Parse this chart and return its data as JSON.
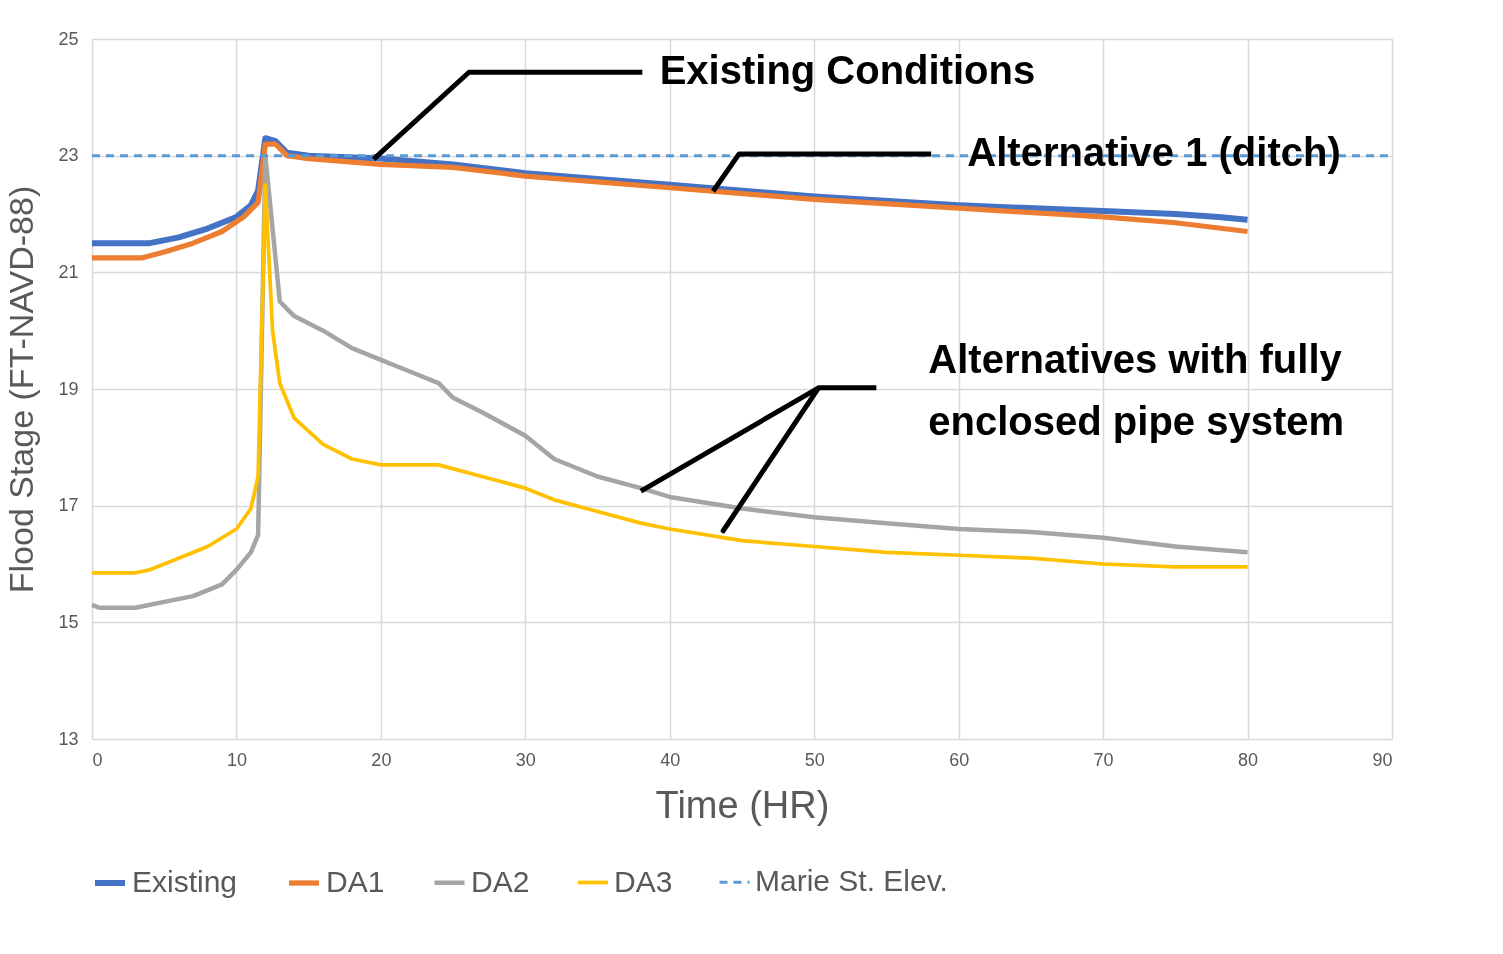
{
  "chart_data": {
    "type": "line",
    "xlabel": "Time (HR)",
    "ylabel": "Flood Stage (FT-NAVD-88)",
    "xlim": [
      0,
      90
    ],
    "xticks": [
      0,
      10,
      20,
      30,
      40,
      50,
      60,
      70,
      80,
      90
    ],
    "ylim": [
      13,
      25
    ],
    "yticks": [
      13,
      15,
      17,
      19,
      21,
      23,
      25
    ],
    "grid": true,
    "legend": "bottom",
    "marker": "none",
    "series": [
      {
        "name": "Existing",
        "color": "#4472c4",
        "line_style": "solid",
        "x": [
          0,
          4,
          6,
          8,
          10,
          11,
          11.5,
          12,
          12.7,
          13.5,
          15,
          20,
          25,
          30,
          40,
          50,
          60,
          70,
          75,
          78,
          80
        ],
        "values": [
          21.5,
          21.5,
          21.6,
          21.75,
          21.95,
          22.15,
          22.4,
          23.3,
          23.25,
          23.05,
          23.0,
          22.95,
          22.85,
          22.7,
          22.5,
          22.3,
          22.15,
          22.05,
          22.0,
          21.95,
          21.9
        ]
      },
      {
        "name": "DA1",
        "color": "#ed7d31",
        "line_style": "solid",
        "x": [
          0,
          3.5,
          5,
          7,
          9,
          10.5,
          11.5,
          12,
          12.7,
          13.5,
          15,
          20,
          25,
          30,
          40,
          50,
          60,
          70,
          75,
          80
        ],
        "values": [
          21.25,
          21.25,
          21.35,
          21.5,
          21.7,
          21.95,
          22.2,
          23.2,
          23.2,
          23.0,
          22.95,
          22.85,
          22.8,
          22.65,
          22.45,
          22.25,
          22.1,
          21.95,
          21.85,
          21.7
        ]
      },
      {
        "name": "DA2",
        "color": "#a5a5a5",
        "line_style": "solid",
        "x": [
          0,
          0.5,
          3,
          5,
          7,
          9,
          10,
          11,
          11.5,
          12,
          13,
          14,
          16,
          18,
          20,
          22,
          24,
          25,
          27,
          30,
          32,
          35,
          38,
          40,
          45,
          50,
          55,
          60,
          65,
          70,
          75,
          80
        ],
        "values": [
          15.3,
          15.25,
          15.25,
          15.35,
          15.45,
          15.65,
          15.9,
          16.2,
          16.5,
          23.0,
          20.5,
          20.25,
          20.0,
          19.7,
          19.5,
          19.3,
          19.1,
          18.85,
          18.6,
          18.2,
          17.8,
          17.5,
          17.3,
          17.15,
          16.95,
          16.8,
          16.7,
          16.6,
          16.55,
          16.45,
          16.3,
          16.2
        ]
      },
      {
        "name": "DA3",
        "color": "#ffc000",
        "line_style": "solid",
        "x": [
          0,
          3,
          4,
          5,
          6,
          8,
          10,
          11,
          11.5,
          12,
          12.5,
          13,
          14,
          16,
          18,
          20,
          24,
          27,
          30,
          32,
          35,
          38,
          40,
          45,
          50,
          55,
          60,
          65,
          70,
          75,
          80
        ],
        "values": [
          15.85,
          15.85,
          15.9,
          16.0,
          16.1,
          16.3,
          16.6,
          16.95,
          17.5,
          22.5,
          20.0,
          19.1,
          18.5,
          18.05,
          17.8,
          17.7,
          17.7,
          17.5,
          17.3,
          17.1,
          16.9,
          16.7,
          16.6,
          16.4,
          16.3,
          16.2,
          16.15,
          16.1,
          16.0,
          15.95,
          15.95
        ]
      },
      {
        "name": "Marie St. Elev.",
        "color": "#5b9bd5",
        "line_style": "dashed",
        "x": [
          0,
          90
        ],
        "values": [
          23,
          23
        ]
      }
    ],
    "annotations": [
      {
        "text": "Existing Conditions",
        "x": 19.5,
        "y": 22.94
      },
      {
        "text": "Alternative 1 (ditch)",
        "x": 43,
        "y": 22.39
      },
      {
        "text": "Alternatives with fully\nenclosed pipe system",
        "x": 38,
        "y": 17.25
      }
    ]
  }
}
